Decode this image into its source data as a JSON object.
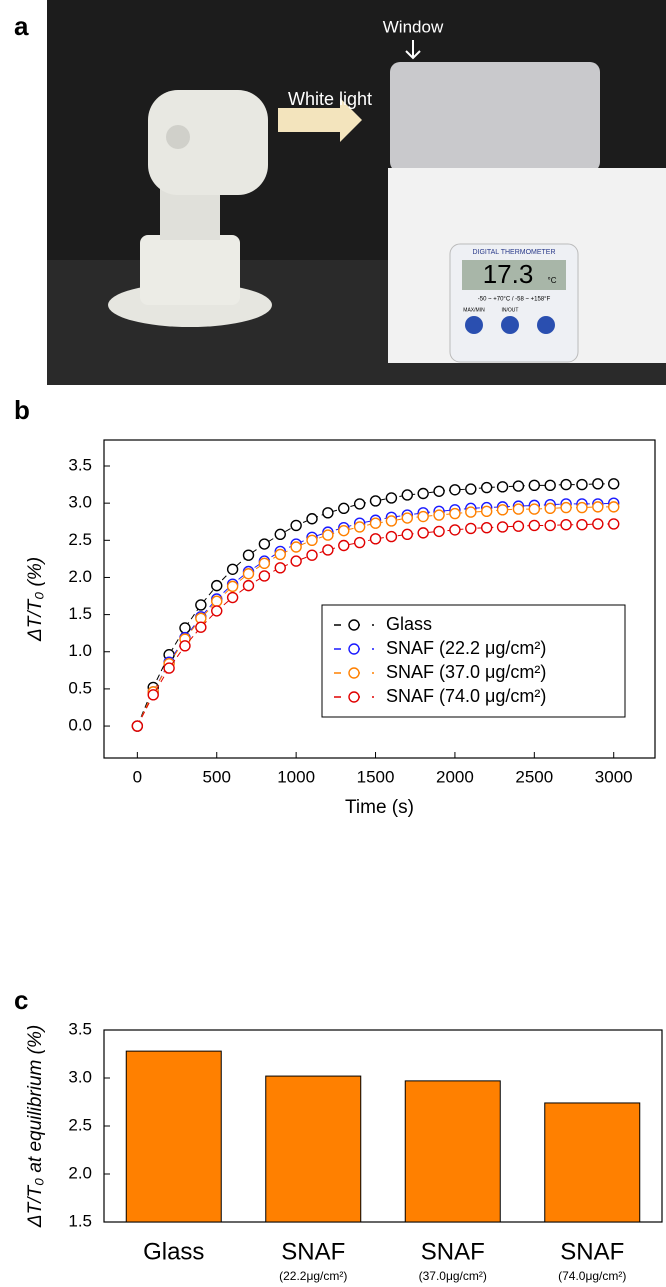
{
  "photo": {
    "label": "a",
    "annotations": {
      "light": "White light",
      "window": "Window"
    },
    "thermometer": {
      "title": "DIGITAL THERMOMETER",
      "reading": "17.3",
      "unit": "°C",
      "range": "-50 ~ +70°C / -58 ~ +158°F",
      "buttons": [
        "MAX/MIN",
        "IN/OUT"
      ]
    }
  },
  "chart_data": [
    {
      "type": "line",
      "panel_label": "b",
      "xlabel": "Time (s)",
      "ylabel": "ΔT/T₀ (%)",
      "x": [
        0,
        100,
        200,
        300,
        400,
        500,
        600,
        700,
        800,
        900,
        1000,
        1100,
        1200,
        1300,
        1400,
        1500,
        1600,
        1700,
        1800,
        1900,
        2000,
        2100,
        2200,
        2300,
        2400,
        2500,
        2600,
        2700,
        2800,
        2900,
        3000
      ],
      "series": [
        {
          "name": "Glass",
          "color": "#000000",
          "values": [
            0,
            0.52,
            0.96,
            1.32,
            1.63,
            1.89,
            2.11,
            2.3,
            2.45,
            2.58,
            2.7,
            2.79,
            2.87,
            2.93,
            2.99,
            3.03,
            3.07,
            3.11,
            3.13,
            3.16,
            3.18,
            3.19,
            3.21,
            3.22,
            3.23,
            3.24,
            3.24,
            3.25,
            3.25,
            3.26,
            3.26
          ]
        },
        {
          "name": "SNAF (22.2 μg/cm²)",
          "color": "#1a1aff",
          "values": [
            0,
            0.46,
            0.86,
            1.19,
            1.47,
            1.71,
            1.91,
            2.08,
            2.22,
            2.35,
            2.45,
            2.54,
            2.61,
            2.67,
            2.73,
            2.77,
            2.81,
            2.84,
            2.87,
            2.89,
            2.91,
            2.93,
            2.94,
            2.95,
            2.96,
            2.97,
            2.98,
            2.99,
            2.99,
            2.99,
            3.0
          ]
        },
        {
          "name": "SNAF (37.0 μg/cm²)",
          "color": "#ff8000",
          "values": [
            0,
            0.46,
            0.84,
            1.17,
            1.45,
            1.68,
            1.88,
            2.05,
            2.19,
            2.31,
            2.41,
            2.5,
            2.57,
            2.63,
            2.68,
            2.73,
            2.76,
            2.8,
            2.82,
            2.84,
            2.86,
            2.88,
            2.89,
            2.91,
            2.92,
            2.92,
            2.93,
            2.94,
            2.94,
            2.95,
            2.95
          ]
        },
        {
          "name": "SNAF (74.0 μg/cm²)",
          "color": "#e00000",
          "values": [
            0,
            0.42,
            0.78,
            1.08,
            1.33,
            1.55,
            1.73,
            1.89,
            2.02,
            2.13,
            2.22,
            2.3,
            2.37,
            2.43,
            2.47,
            2.52,
            2.55,
            2.58,
            2.6,
            2.62,
            2.64,
            2.66,
            2.67,
            2.68,
            2.69,
            2.7,
            2.7,
            2.71,
            2.71,
            2.72,
            2.72
          ]
        }
      ],
      "xlim": [
        -210,
        3260
      ],
      "xticks": [
        0,
        500,
        1000,
        1500,
        2000,
        2500,
        3000
      ],
      "ylim": [
        -0.43,
        3.85
      ],
      "yticks": [
        {
          "value": 0,
          "label": "0.0"
        },
        0.5,
        {
          "value": 1,
          "label": "1.0"
        },
        1.5,
        {
          "value": 2,
          "label": "2.0"
        },
        2.5,
        {
          "value": 3,
          "label": "3.0"
        },
        3.5
      ],
      "legend": "lower right"
    },
    {
      "type": "bar",
      "panel_label": "c",
      "ylabel": "ΔT/T₀ at equilibrium (%)",
      "categories": [
        "Glass",
        "SNAF",
        "SNAF",
        "SNAF"
      ],
      "category_sublabels": [
        null,
        "(22.2μg/cm²)",
        "(37.0μg/cm²)",
        "(74.0μg/cm²)"
      ],
      "values": [
        3.28,
        3.02,
        2.97,
        2.74
      ],
      "color": "#ff8000",
      "ylim": [
        1.5,
        3.5
      ],
      "yticks": [
        1.5,
        {
          "value": 2,
          "label": "2.0"
        },
        2.5,
        {
          "value": 3,
          "label": "3.0"
        },
        3.5
      ]
    }
  ]
}
